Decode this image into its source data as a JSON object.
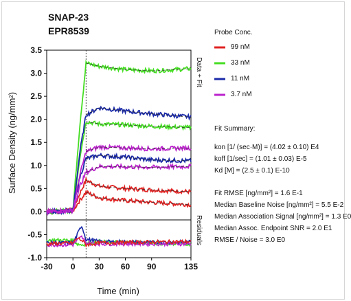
{
  "chart_data": {
    "type": "line",
    "title": "SNAP-23",
    "subtitle": "EPR8539",
    "xlabel": "Time (min)",
    "ylabel": "Surface Density (ng/mm²)",
    "right_label_top": "Data + Fit",
    "right_label_bottom": "Residuals",
    "xlim": [
      -30,
      135
    ],
    "ylim": [
      -1.0,
      3.5
    ],
    "x_ticks": [
      "-30",
      "0",
      "30",
      "60",
      "90",
      "135"
    ],
    "y_ticks": [
      "-1.0",
      "-0.5",
      "0.0",
      "0.5",
      "1.0",
      "1.5",
      "2.0",
      "2.5",
      "3.0",
      "3.5"
    ],
    "injection_end_x": 15,
    "residual_divider_y": -0.18,
    "grid": false,
    "legend_title": "Probe Conc.",
    "series": [
      {
        "name": "99 nM",
        "color": "#e02222",
        "curves": [
          {
            "x": [
              -30,
              0,
              8,
              15,
              30,
              60,
              90,
              135
            ],
            "y": [
              0.0,
              0.02,
              0.4,
              0.68,
              0.55,
              0.5,
              0.47,
              0.43
            ]
          },
          {
            "x": [
              -30,
              0,
              8,
              15,
              30,
              60,
              90,
              135
            ],
            "y": [
              0.0,
              0.02,
              0.25,
              0.42,
              0.3,
              0.24,
              0.2,
              0.15
            ]
          }
        ]
      },
      {
        "name": "33 nM",
        "color": "#44dd22",
        "curves": [
          {
            "x": [
              -30,
              0,
              8,
              15,
              30,
              60,
              90,
              135
            ],
            "y": [
              0.0,
              0.02,
              1.9,
              3.22,
              3.15,
              3.08,
              3.05,
              3.1
            ]
          },
          {
            "x": [
              -30,
              0,
              8,
              15,
              30,
              60,
              90,
              135
            ],
            "y": [
              0.0,
              0.02,
              1.2,
              1.95,
              1.9,
              1.88,
              1.85,
              1.82
            ]
          }
        ]
      },
      {
        "name": "11 nM",
        "color": "#1a2aa8",
        "curves": [
          {
            "x": [
              -30,
              0,
              8,
              15,
              30,
              60,
              90,
              135
            ],
            "y": [
              0.0,
              0.02,
              1.3,
              2.1,
              2.25,
              2.18,
              2.12,
              2.05
            ]
          },
          {
            "x": [
              -30,
              0,
              8,
              15,
              30,
              60,
              90,
              135
            ],
            "y": [
              0.0,
              0.02,
              0.75,
              1.15,
              1.22,
              1.18,
              1.12,
              1.1
            ]
          }
        ]
      },
      {
        "name": "3.7 nM",
        "color": "#bb22cc",
        "curves": [
          {
            "x": [
              -30,
              0,
              8,
              15,
              30,
              60,
              90,
              135
            ],
            "y": [
              0.0,
              0.02,
              0.8,
              1.3,
              1.4,
              1.38,
              1.36,
              1.38
            ]
          },
          {
            "x": [
              -30,
              0,
              8,
              15,
              30,
              60,
              90,
              135
            ],
            "y": [
              0.0,
              0.02,
              0.55,
              0.85,
              0.98,
              0.97,
              0.96,
              0.98
            ]
          }
        ]
      }
    ],
    "residuals": [
      {
        "color": "#44dd22",
        "x": [
          -30,
          0,
          5,
          10,
          15,
          30,
          60,
          90,
          135
        ],
        "y": [
          -0.62,
          -0.62,
          -0.7,
          -0.72,
          -0.7,
          -0.66,
          -0.66,
          -0.68,
          -0.7
        ]
      },
      {
        "color": "#1a2aa8",
        "x": [
          -30,
          0,
          5,
          10,
          15,
          30,
          60,
          90,
          135
        ],
        "y": [
          -0.68,
          -0.68,
          -0.5,
          -0.3,
          -0.6,
          -0.65,
          -0.66,
          -0.67,
          -0.66
        ]
      },
      {
        "color": "#bb22cc",
        "x": [
          -30,
          0,
          5,
          10,
          15,
          30,
          60,
          90,
          135
        ],
        "y": [
          -0.72,
          -0.72,
          -0.62,
          -0.55,
          -0.68,
          -0.7,
          -0.7,
          -0.7,
          -0.7
        ]
      },
      {
        "color": "#e02222",
        "x": [
          -30,
          0,
          5,
          10,
          15,
          30,
          60,
          90,
          135
        ],
        "y": [
          -0.7,
          -0.68,
          -0.58,
          -0.62,
          -0.72,
          -0.68,
          -0.67,
          -0.66,
          -0.65
        ]
      }
    ]
  },
  "legend": {
    "title": "Probe Conc.",
    "items": [
      {
        "label": "99 nM",
        "color": "#e02222"
      },
      {
        "label": "33 nM",
        "color": "#44dd22"
      },
      {
        "label": "11 nM",
        "color": "#1a2aa8"
      },
      {
        "label": "3.7 nM",
        "color": "#bb22cc"
      }
    ]
  },
  "summary": {
    "title": "Fit Summary:",
    "lines": [
      "kon  [1/ (sec·M)]  =  (4.02 ± 0.10) E4",
      "koff  [1/sec]  =  (1.01 ± 0.03) E-5",
      "Kd  [M]  =  (2.5 ± 0.1) E-10",
      "Fit RMSE [ng/mm²]  =  1.6 E-1",
      "Median Baseline Noise [ng/mm²]  =  5.5 E-2",
      "Median Association Signal [ng/mm²]  =  1.3 E0",
      "Median Assoc. Endpoint SNR  =  2.0 E1",
      "RMSE / Noise  =  3.0 E0"
    ]
  }
}
